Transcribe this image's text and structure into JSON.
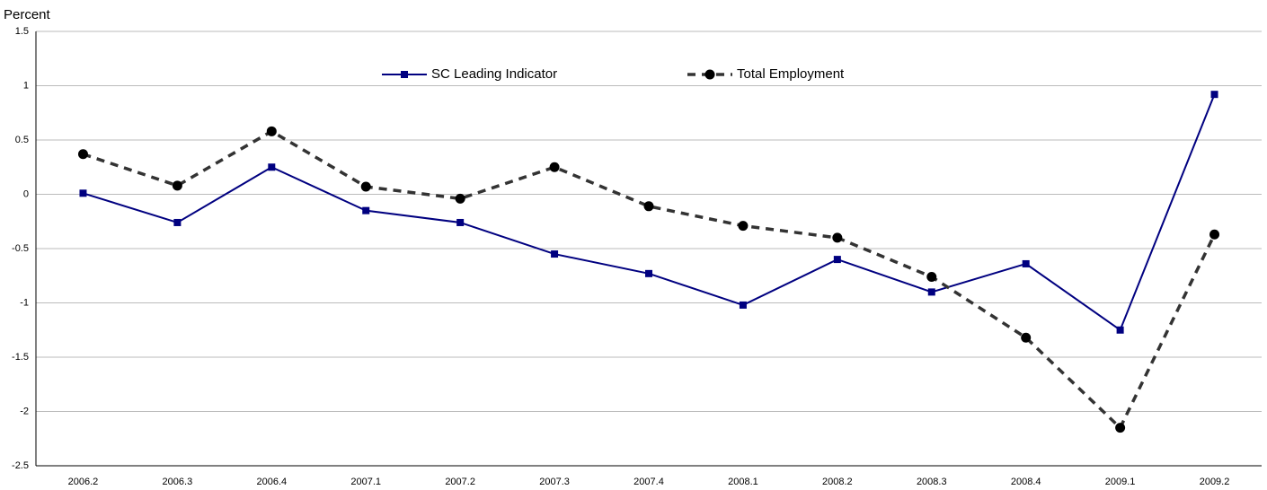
{
  "chart_data": {
    "type": "line",
    "y_label": "Percent",
    "categories": [
      "2006.2",
      "2006.3",
      "2006.4",
      "2007.1",
      "2007.2",
      "2007.3",
      "2007.4",
      "2008.1",
      "2008.2",
      "2008.3",
      "2008.4",
      "2009.1",
      "2009.2"
    ],
    "series": [
      {
        "name": "SC Leading Indicator",
        "color": "#000080",
        "marker": "square",
        "dashed": false,
        "values": [
          0.01,
          -0.26,
          0.25,
          -0.15,
          -0.26,
          -0.55,
          -0.73,
          -1.02,
          -0.6,
          -0.9,
          -0.64,
          -1.25,
          0.92
        ]
      },
      {
        "name": "Total Employment",
        "color": "#333333",
        "marker": "circle",
        "dashed": true,
        "values": [
          0.37,
          0.08,
          0.58,
          0.07,
          -0.04,
          0.25,
          -0.11,
          -0.29,
          -0.4,
          -0.76,
          -1.32,
          -2.15,
          -0.37
        ]
      }
    ],
    "ylim": [
      -2.5,
      1.5
    ],
    "yticks": [
      -2.5,
      -2,
      -1.5,
      -1,
      -0.5,
      0,
      0.5,
      1,
      1.5
    ],
    "grid": true
  }
}
